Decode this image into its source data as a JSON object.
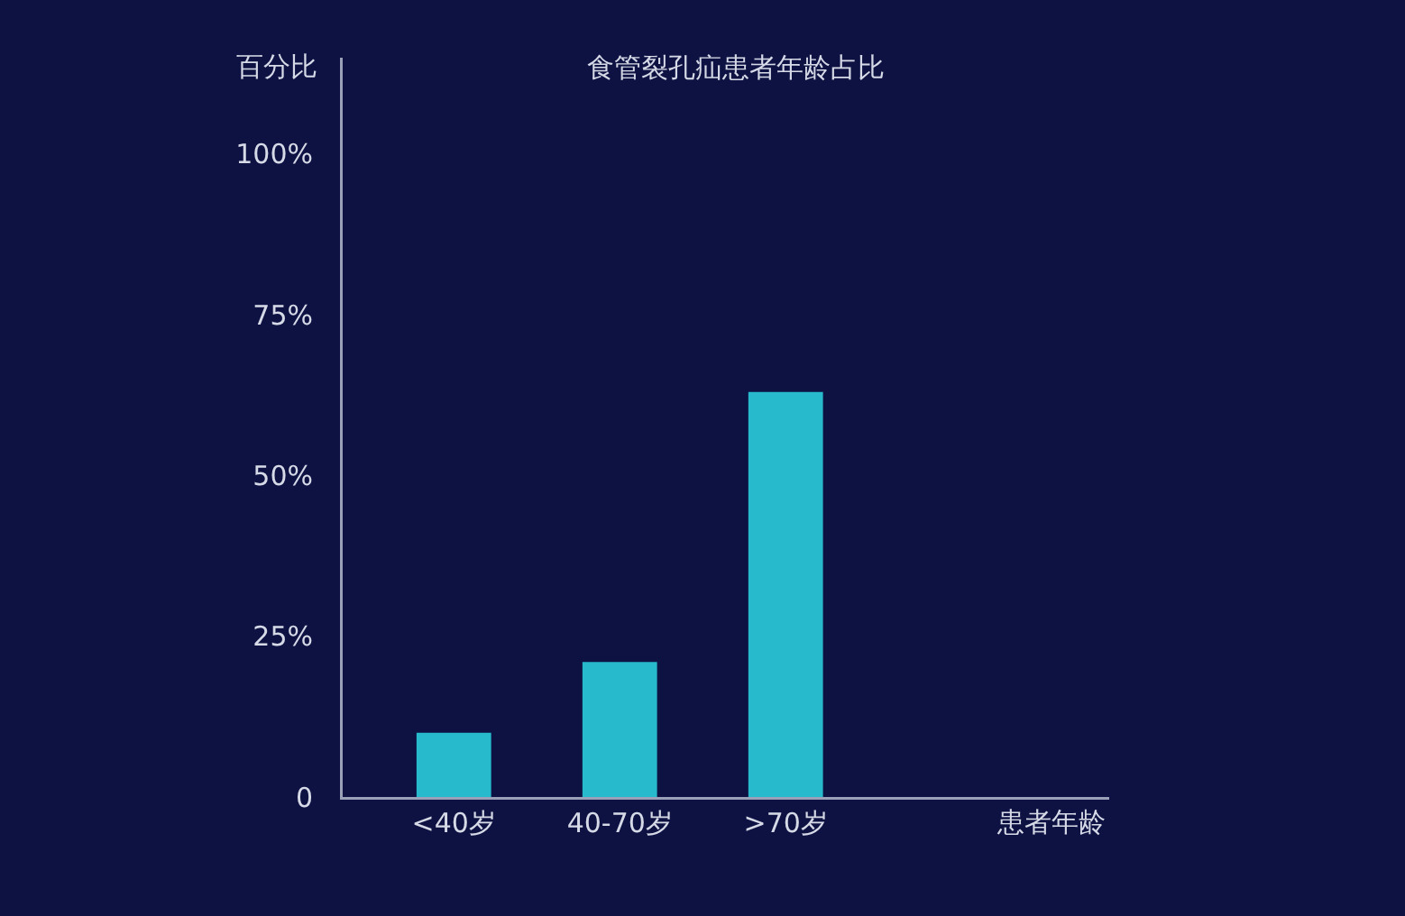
{
  "chart_data": {
    "type": "bar",
    "title": "食管裂孔疝患者年龄占比",
    "xlabel": "患者年龄",
    "ylabel": "百分比",
    "categories": [
      "<40岁",
      "40-70岁",
      ">70岁"
    ],
    "values": [
      10,
      21,
      63
    ],
    "color": "#27b9cc",
    "ylim": [
      0,
      115
    ],
    "yticks": [
      0,
      {
        "value": 25,
        "label": "25%"
      },
      {
        "value": 50,
        "label": "50%"
      },
      {
        "value": 75,
        "label": "75%"
      },
      {
        "value": 100,
        "label": "100%"
      }
    ]
  }
}
